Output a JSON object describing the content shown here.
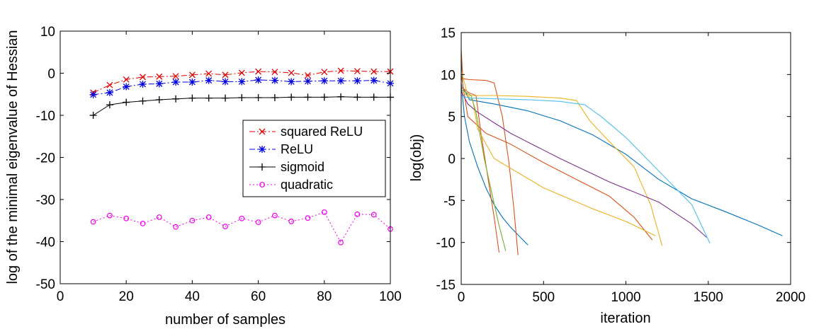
{
  "chart_data": [
    {
      "type": "line",
      "xlabel": "number of samples",
      "ylabel": "log of the minimal eigenvalue of Hessian",
      "xlim": [
        0,
        100
      ],
      "ylim": [
        -50,
        10
      ],
      "xticks": [
        0,
        20,
        40,
        60,
        80,
        100
      ],
      "yticks": [
        10,
        0,
        -10,
        -20,
        -30,
        -40,
        -50
      ],
      "x": [
        10,
        15,
        20,
        25,
        30,
        35,
        40,
        45,
        50,
        55,
        60,
        65,
        70,
        75,
        80,
        85,
        90,
        95,
        100
      ],
      "legend_position": "center-right",
      "series": [
        {
          "name": "squared ReLU",
          "color": "#e00000",
          "style": "dash-dot",
          "marker": "x",
          "values": [
            -4.6,
            -2.8,
            -1.5,
            -0.9,
            -0.8,
            -0.7,
            -0.4,
            -0.1,
            -0.4,
            0.1,
            0.4,
            0.3,
            0.1,
            -0.5,
            0.3,
            0.6,
            0.5,
            0.4,
            0.4
          ]
        },
        {
          "name": "ReLU",
          "color": "#0000e0",
          "style": "dash-dot",
          "marker": "star",
          "values": [
            -5.1,
            -4.6,
            -3.2,
            -2.6,
            -2.5,
            -2.1,
            -2.1,
            -1.7,
            -2.0,
            -2.0,
            -1.6,
            -1.7,
            -2.0,
            -1.9,
            -1.8,
            -1.8,
            -1.8,
            -1.7,
            -2.4
          ]
        },
        {
          "name": "sigmoid",
          "color": "#000000",
          "style": "solid",
          "marker": "plus",
          "values": [
            -10.0,
            -7.5,
            -6.9,
            -6.6,
            -6.3,
            -6.1,
            -5.9,
            -5.9,
            -5.9,
            -5.8,
            -5.8,
            -5.8,
            -5.7,
            -5.7,
            -5.7,
            -5.6,
            -5.7,
            -5.7,
            -5.7
          ]
        },
        {
          "name": "quadratic",
          "color": "#ee00ee",
          "style": "dotted",
          "marker": "circle",
          "values": [
            -35.3,
            -33.8,
            -34.5,
            -35.7,
            -34.2,
            -36.5,
            -35.0,
            -34.2,
            -36.4,
            -34.5,
            -35.4,
            -33.8,
            -35.2,
            -34.4,
            -33.0,
            -40.2,
            -33.5,
            -33.6,
            -37.0
          ]
        }
      ]
    },
    {
      "type": "line",
      "xlabel": "iteration",
      "ylabel": "log(obj)",
      "xlim": [
        0,
        2000
      ],
      "ylim": [
        -15,
        15
      ],
      "xticks": [
        0,
        500,
        1000,
        1500,
        2000
      ],
      "yticks": [
        15,
        10,
        5,
        0,
        -5,
        -10,
        -15
      ],
      "series": [
        {
          "color": "#0072bd",
          "points": [
            [
              0,
              12.5
            ],
            [
              10,
              8.5
            ],
            [
              50,
              7.0
            ],
            [
              200,
              6.5
            ],
            [
              400,
              5.7
            ],
            [
              600,
              4.5
            ],
            [
              800,
              2.8
            ],
            [
              1000,
              0.5
            ],
            [
              1200,
              -2.5
            ],
            [
              1400,
              -4.8
            ],
            [
              1600,
              -6.3
            ],
            [
              1800,
              -7.9
            ],
            [
              1950,
              -9.2
            ]
          ]
        },
        {
          "color": "#0072bd",
          "points": [
            [
              0,
              9.0
            ],
            [
              20,
              5.0
            ],
            [
              50,
              2.0
            ],
            [
              100,
              -1.0
            ],
            [
              150,
              -3.5
            ],
            [
              200,
              -5.5
            ],
            [
              250,
              -7.0
            ],
            [
              300,
              -8.2
            ],
            [
              350,
              -9.2
            ],
            [
              405,
              -10.3
            ]
          ]
        },
        {
          "color": "#d95319",
          "points": [
            [
              0,
              13.0
            ],
            [
              10,
              9.5
            ],
            [
              50,
              9.4
            ],
            [
              150,
              9.3
            ],
            [
              200,
              9.0
            ],
            [
              250,
              5.0
            ],
            [
              290,
              -0.5
            ],
            [
              320,
              -6.0
            ],
            [
              345,
              -11.5
            ]
          ]
        },
        {
          "color": "#d95319",
          "points": [
            [
              0,
              10.0
            ],
            [
              40,
              5.0
            ],
            [
              150,
              3.0
            ],
            [
              300,
              1.7
            ],
            [
              500,
              -0.5
            ],
            [
              700,
              -2.5
            ],
            [
              900,
              -4.5
            ],
            [
              1050,
              -7.0
            ],
            [
              1160,
              -9.7
            ]
          ]
        },
        {
          "color": "#d95319",
          "points": [
            [
              0,
              8.5
            ],
            [
              50,
              7.8
            ],
            [
              90,
              7.5
            ],
            [
              120,
              3.0
            ],
            [
              160,
              -2.0
            ],
            [
              200,
              -7.0
            ],
            [
              230,
              -11.2
            ]
          ]
        },
        {
          "color": "#edb120",
          "points": [
            [
              0,
              10.5
            ],
            [
              40,
              7.5
            ],
            [
              200,
              7.5
            ],
            [
              400,
              7.4
            ],
            [
              600,
              7.2
            ],
            [
              700,
              6.9
            ],
            [
              780,
              4.5
            ],
            [
              900,
              2.0
            ],
            [
              1050,
              -1.0
            ],
            [
              1150,
              -5.5
            ],
            [
              1220,
              -10.4
            ]
          ]
        },
        {
          "color": "#edb120",
          "points": [
            [
              0,
              8.0
            ],
            [
              70,
              7.0
            ],
            [
              100,
              3.5
            ],
            [
              200,
              0.0
            ],
            [
              500,
              -3.5
            ],
            [
              800,
              -6.0
            ],
            [
              1000,
              -7.5
            ],
            [
              1180,
              -9.2
            ]
          ]
        },
        {
          "color": "#7e2f8e",
          "points": [
            [
              0,
              8.0
            ],
            [
              40,
              6.5
            ],
            [
              100,
              5.5
            ],
            [
              300,
              3.0
            ],
            [
              600,
              0.0
            ],
            [
              900,
              -2.8
            ],
            [
              1200,
              -5.2
            ],
            [
              1400,
              -7.8
            ],
            [
              1490,
              -9.4
            ]
          ]
        },
        {
          "color": "#77ac30",
          "points": [
            [
              0,
              8.2
            ],
            [
              60,
              7.5
            ],
            [
              90,
              5.5
            ],
            [
              140,
              0.0
            ],
            [
              190,
              -4.5
            ],
            [
              230,
              -8.0
            ],
            [
              270,
              -11.0
            ]
          ]
        },
        {
          "color": "#4dbeee",
          "points": [
            [
              0,
              7.5
            ],
            [
              50,
              7.2
            ],
            [
              400,
              7.0
            ],
            [
              600,
              6.8
            ],
            [
              750,
              6.4
            ],
            [
              850,
              5.0
            ],
            [
              1000,
              2.5
            ],
            [
              1200,
              -1.5
            ],
            [
              1400,
              -5.5
            ],
            [
              1510,
              -10.1
            ]
          ]
        }
      ]
    }
  ]
}
